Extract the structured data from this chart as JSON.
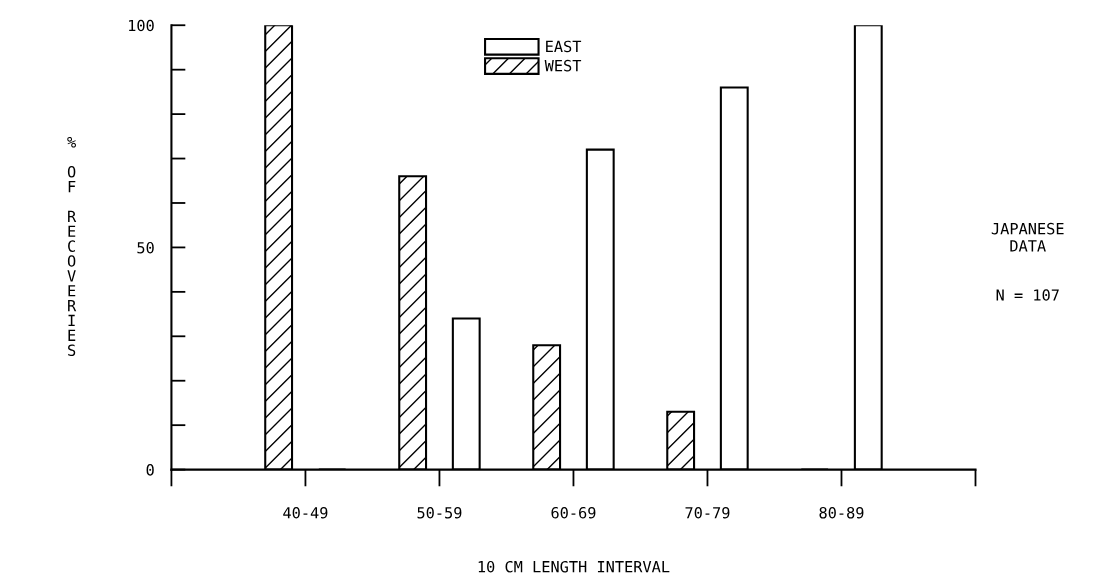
{
  "chart_data": {
    "type": "bar",
    "xlabel": "10 CM LENGTH INTERVAL",
    "ylabel": "% OF RECOVERIES",
    "categories": [
      "40-49",
      "50-59",
      "60-69",
      "70-79",
      "80-89"
    ],
    "series": [
      {
        "name": "WEST",
        "color": "#000000",
        "values": [
          100,
          66,
          28,
          13,
          0
        ]
      },
      {
        "name": "EAST",
        "color": "#ffffff",
        "values": [
          0,
          34,
          72,
          86,
          100
        ]
      }
    ],
    "ylim": [
      0,
      100
    ],
    "yticks": [
      0,
      {
        "value": 10,
        "label": null
      },
      {
        "value": 20,
        "label": null
      },
      {
        "value": 30,
        "label": null
      },
      {
        "value": 40,
        "label": null
      },
      50,
      {
        "value": 60,
        "label": null
      },
      {
        "value": 70,
        "label": null
      },
      {
        "value": 80,
        "label": null
      },
      {
        "value": 90,
        "label": null
      },
      100
    ],
    "annotations": [
      "JAPANESE\nDATA",
      "N = 107"
    ],
    "legend": "top",
    "grid": false
  }
}
